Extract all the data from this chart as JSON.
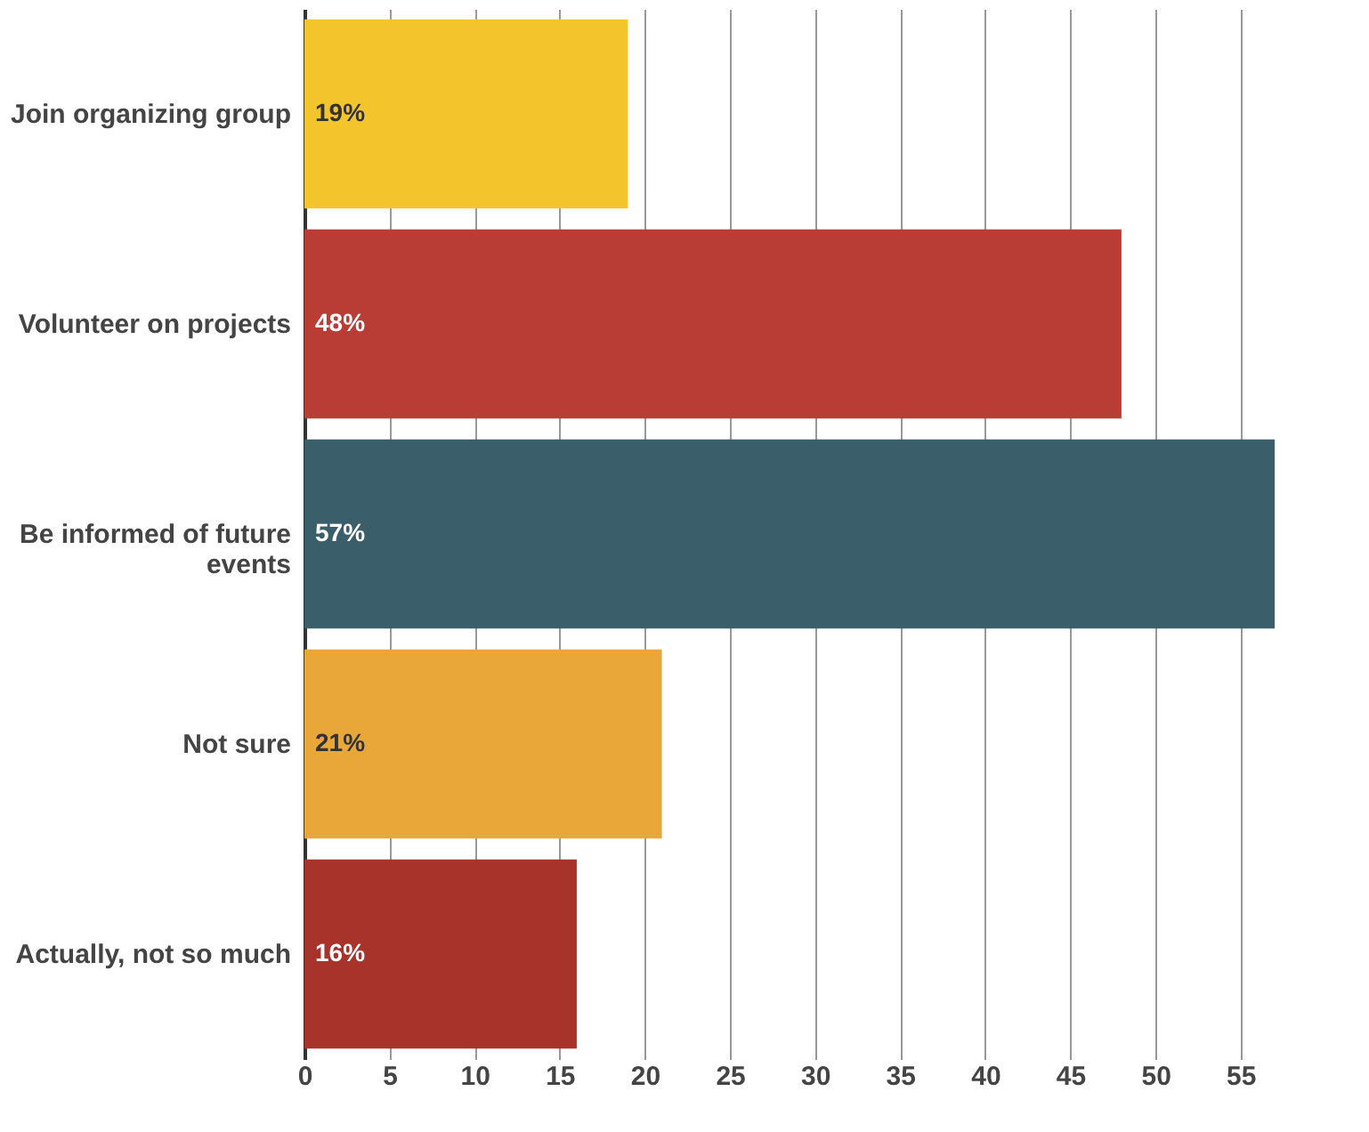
{
  "chart_data": {
    "type": "bar",
    "orientation": "horizontal",
    "categories": [
      "Join organizing group",
      "Volunteer on projects",
      "Be informed of future events",
      "Not sure",
      "Actually, not so much"
    ],
    "values": [
      19,
      48,
      57,
      21,
      16
    ],
    "value_labels": [
      "19%",
      "48%",
      "57%",
      "21%",
      "16%"
    ],
    "colors": [
      "#f4c42c",
      "#b93c35",
      "#3a5f6a",
      "#e9a73a",
      "#a8332a"
    ],
    "xlim": [
      0,
      57
    ],
    "xticks": [
      0,
      5,
      10,
      15,
      20,
      25,
      30,
      35,
      40,
      45,
      50,
      55
    ],
    "grid": "x"
  }
}
